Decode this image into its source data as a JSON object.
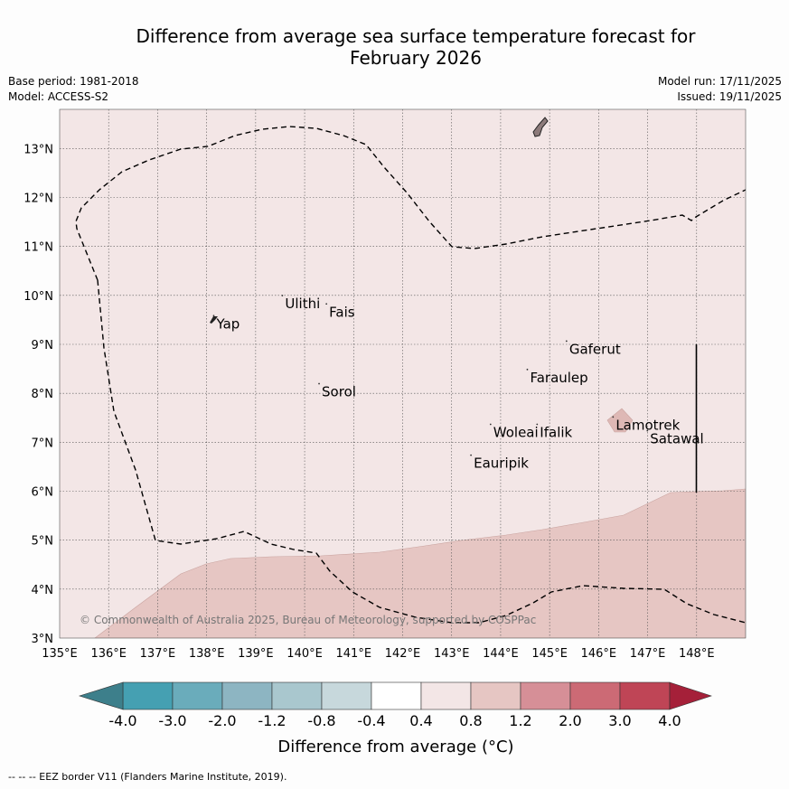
{
  "title_line1": "Difference from average sea surface temperature forecast for",
  "title_line2": "February 2026",
  "base_period": "Base period: 1981-2018",
  "model": "Model: ACCESS-S2",
  "model_run": "Model run: 17/11/2025",
  "issued": "Issued: 19/11/2025",
  "copyright": "© Commonwealth of Australia 2025, Bureau of Meteorology, supported by COSPPac",
  "footnote": "--  --  -- EEZ border V11 (Flanders Marine Institute, 2019).",
  "map": {
    "lon_range": [
      135,
      149
    ],
    "lat_range": [
      3,
      13.8
    ],
    "lon_ticks": [
      "135°E",
      "136°E",
      "137°E",
      "138°E",
      "139°E",
      "140°E",
      "141°E",
      "142°E",
      "143°E",
      "144°E",
      "145°E",
      "146°E",
      "147°E",
      "148°E"
    ],
    "lat_ticks": [
      "3°N",
      "4°N",
      "5°N",
      "6°N",
      "7°N",
      "8°N",
      "9°N",
      "10°N",
      "11°N",
      "12°N",
      "13°N"
    ],
    "background_class": "0.4 to 0.8",
    "colors": {
      "bg": "#f3e6e6",
      "warm": "#e6c6c3",
      "warm_edge": "#c9a39f",
      "island": "#222222"
    },
    "places": [
      {
        "name": "Yap",
        "lon": 138.2,
        "lat": 9.42
      },
      {
        "name": "Ulithi",
        "lon": 139.6,
        "lat": 9.83
      },
      {
        "name": "Fais",
        "lon": 140.5,
        "lat": 9.66
      },
      {
        "name": "Sorol",
        "lon": 140.35,
        "lat": 8.03
      },
      {
        "name": "Gaferut",
        "lon": 145.4,
        "lat": 8.9
      },
      {
        "name": "Faraulep",
        "lon": 144.6,
        "lat": 8.32
      },
      {
        "name": "Woleai",
        "lon": 143.85,
        "lat": 7.2
      },
      {
        "name": "Ifalik",
        "lon": 144.8,
        "lat": 7.2
      },
      {
        "name": "Lamotrek",
        "lon": 146.35,
        "lat": 7.35
      },
      {
        "name": "Satawal",
        "lon": 147.05,
        "lat": 7.07
      },
      {
        "name": "Eauripik",
        "lon": 143.45,
        "lat": 6.57
      }
    ]
  },
  "colorbar": {
    "label": "Difference from average (°C)",
    "ticks": [
      "-4.0",
      "-3.0",
      "-2.0",
      "-1.2",
      "-0.8",
      "-0.4",
      "0.4",
      "0.8",
      "1.2",
      "2.0",
      "3.0",
      "4.0"
    ],
    "colors": [
      "#3d7f8b",
      "#45a0b2",
      "#6aacbb",
      "#8db5c2",
      "#a9c7ce",
      "#c7d8dc",
      "#ffffff",
      "#f3e6e6",
      "#e6c6c3",
      "#d68f97",
      "#cc6a75",
      "#bf4556",
      "#a52039"
    ]
  }
}
